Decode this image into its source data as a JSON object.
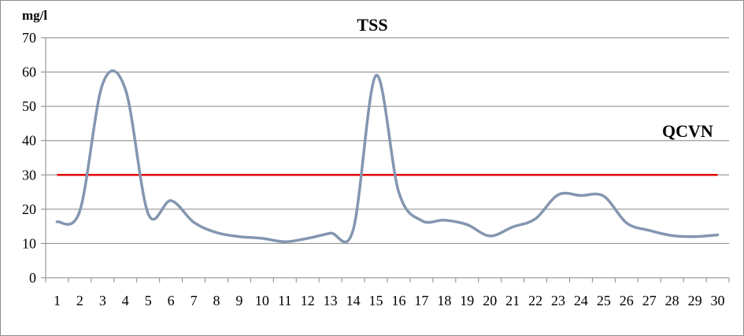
{
  "chart_data": {
    "type": "line",
    "title": "TSS",
    "ylabel": "mg/l",
    "xlabel": "",
    "ylim": [
      0,
      70
    ],
    "yticks": [
      0,
      10,
      20,
      30,
      40,
      50,
      60,
      70
    ],
    "grid": "horizontal",
    "x": [
      1,
      2,
      3,
      4,
      5,
      6,
      7,
      8,
      9,
      10,
      11,
      12,
      13,
      14,
      15,
      16,
      17,
      18,
      19,
      20,
      21,
      22,
      23,
      24,
      25,
      26,
      27,
      28,
      29,
      30
    ],
    "series": [
      {
        "name": "",
        "color": "#8496b0",
        "values": [
          16.3,
          19.5,
          56.5,
          55.0,
          18.7,
          22.5,
          16.2,
          13.2,
          12.0,
          11.5,
          10.5,
          11.5,
          13.0,
          14.0,
          59.0,
          25.0,
          16.7,
          16.8,
          15.5,
          12.2,
          14.8,
          17.2,
          24.2,
          24.0,
          23.8,
          16.0,
          13.8,
          12.3,
          12.0,
          12.5
        ]
      }
    ],
    "reference_line": {
      "label": "QCVN",
      "value": 30,
      "color": "#e00000"
    }
  }
}
